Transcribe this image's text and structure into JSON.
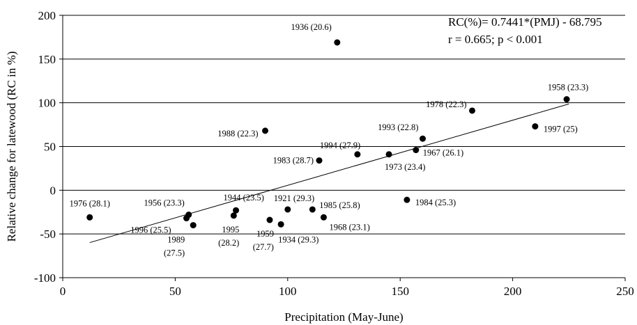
{
  "chart_data": {
    "type": "scatter",
    "xlabel": "Precipitation (May-June)",
    "ylabel": "Relative change for latewood (RC in %)",
    "xlim": [
      0,
      250
    ],
    "ylim": [
      -100,
      200
    ],
    "xticks": [
      "0",
      "50",
      "100",
      "150",
      "200",
      "250"
    ],
    "yticks": [
      "200",
      "150",
      "100",
      "50",
      "0",
      "-50",
      "-100"
    ],
    "grid": "horizontal",
    "annotations": [
      "RC(%)= 0.7441*(PMJ) - 68.795",
      "r = 0.665; p < 0.001"
    ],
    "trendline": {
      "slope": 0.7441,
      "intercept": -68.795,
      "x_range": [
        12,
        225
      ]
    },
    "points": [
      {
        "label": "1976 (28.1)",
        "x": 12,
        "y": -31
      },
      {
        "label": "1996 (25.5)",
        "x": 55,
        "y": -32
      },
      {
        "label": "1956 (23.3)",
        "x": 56,
        "y": -28
      },
      {
        "label": "1989 (27.5)",
        "x": 58,
        "y": -40
      },
      {
        "label": "1995 (28.2)",
        "x": 76,
        "y": -29
      },
      {
        "label": "1944 (23.5)",
        "x": 77,
        "y": -23
      },
      {
        "label": "1988 (22.3)",
        "x": 90,
        "y": 68
      },
      {
        "label": "1959 (27.7)",
        "x": 92,
        "y": -34
      },
      {
        "label": "1934 (29.3)",
        "x": 97,
        "y": -39
      },
      {
        "label": "1921 (29.3)",
        "x": 100,
        "y": -22
      },
      {
        "label": "1985 (25.8)",
        "x": 111,
        "y": -22
      },
      {
        "label": "1983 (28.7)",
        "x": 114,
        "y": 34
      },
      {
        "label": "1968 (23.1)",
        "x": 116,
        "y": -31
      },
      {
        "label": "1936 (20.6)",
        "x": 122,
        "y": 169
      },
      {
        "label": "1994 (27.9)",
        "x": 131,
        "y": 41
      },
      {
        "label": "1973 (23.4)",
        "x": 145,
        "y": 41
      },
      {
        "label": "1984 (25.3)",
        "x": 153,
        "y": -11
      },
      {
        "label": "1967 (26.1)",
        "x": 157,
        "y": 46
      },
      {
        "label": "1993 (22.8)",
        "x": 160,
        "y": 59
      },
      {
        "label": "1978 (22.3)",
        "x": 182,
        "y": 91
      },
      {
        "label": "1997 (25)",
        "x": 210,
        "y": 73
      },
      {
        "label": "1958 (23.3)",
        "x": 224,
        "y": 104
      }
    ]
  }
}
